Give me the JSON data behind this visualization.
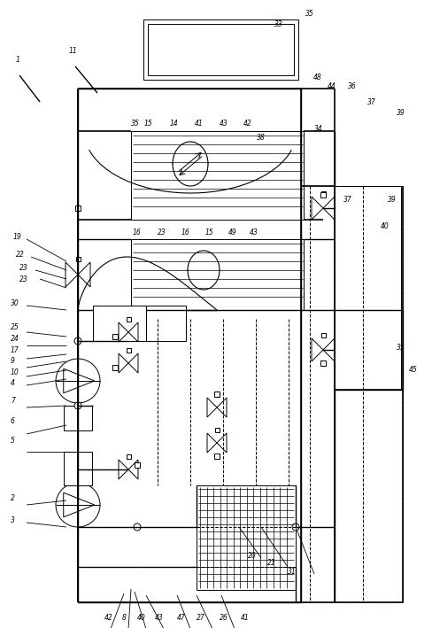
{
  "bg_color": "#ffffff",
  "line_color": "#000000",
  "fig_width": 4.88,
  "fig_height": 7.09,
  "dpi": 100
}
